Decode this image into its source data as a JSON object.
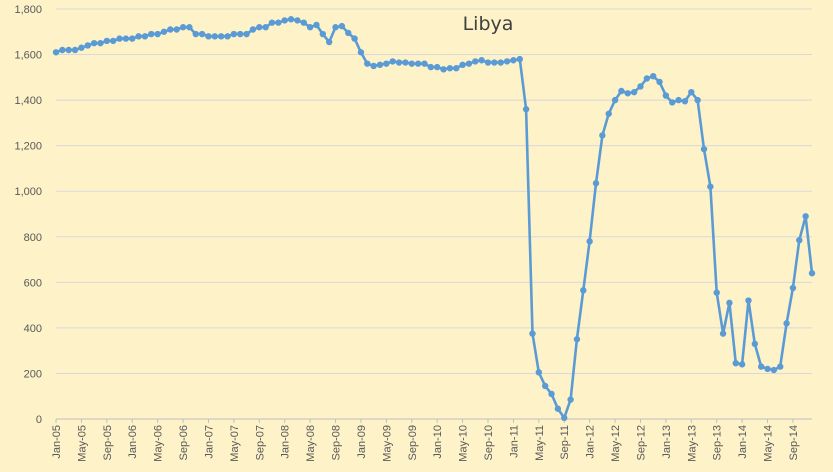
{
  "chart_data": {
    "type": "line",
    "title": "Libya",
    "xlabel": "",
    "ylabel": "",
    "ylim": [
      0,
      1800
    ],
    "y_ticks": [
      "0",
      "200",
      "400",
      "600",
      "800",
      "1,000",
      "1,200",
      "1,400",
      "1,600",
      "1,800"
    ],
    "x_tick_labels": [
      "Jan-05",
      "May-05",
      "Sep-05",
      "Jan-06",
      "May-06",
      "Sep-06",
      "Jan-07",
      "May-07",
      "Sep-07",
      "Jan-08",
      "May-08",
      "Sep-08",
      "Jan-09",
      "May-09",
      "Sep-09",
      "Jan-10",
      "May-10",
      "Sep-10",
      "Jan-11",
      "May-11",
      "Sep-11",
      "Jan-12",
      "May-12",
      "Sep-12",
      "Jan-13",
      "May-13",
      "Sep-13",
      "Jan-14",
      "May-14",
      "Sep-14"
    ],
    "grid": true,
    "legend": "none",
    "colors": {
      "line": "#5b9bd5",
      "grid": "#d9d9d9",
      "background": "#fdf2c8"
    },
    "x_start": "Jan-05",
    "series": [
      {
        "values": [
          1610,
          1620,
          1620,
          1620,
          1630,
          1640,
          1650,
          1650,
          1660,
          1660,
          1670,
          1670,
          1670,
          1680,
          1680,
          1690,
          1690,
          1700,
          1710,
          1710,
          1720,
          1720,
          1690,
          1690,
          1680,
          1680,
          1680,
          1680,
          1690,
          1690,
          1690,
          1710,
          1720,
          1720,
          1740,
          1740,
          1750,
          1755,
          1750,
          1740,
          1720,
          1730,
          1690,
          1655,
          1720,
          1725,
          1695,
          1670,
          1610,
          1560,
          1550,
          1555,
          1560,
          1570,
          1565,
          1565,
          1560,
          1560,
          1560,
          1545,
          1545,
          1535,
          1540,
          1540,
          1555,
          1560,
          1570,
          1575,
          1565,
          1565,
          1565,
          1570,
          1575,
          1580,
          1360,
          375,
          205,
          145,
          110,
          45,
          5,
          85,
          350,
          565,
          780,
          1035,
          1245,
          1340,
          1400,
          1440,
          1430,
          1435,
          1460,
          1495,
          1505,
          1480,
          1420,
          1390,
          1400,
          1395,
          1435,
          1400,
          1185,
          1020,
          555,
          375,
          510,
          245,
          240,
          520,
          330,
          230,
          220,
          215,
          230,
          420,
          575,
          785,
          890,
          640
        ]
      }
    ]
  }
}
